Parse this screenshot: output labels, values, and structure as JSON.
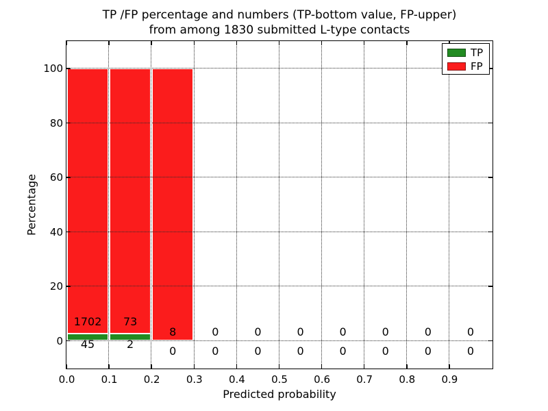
{
  "chart_data": {
    "type": "bar",
    "stacked": true,
    "title_line1": "TP /FP percentage and numbers (TP-bottom value, FP-upper)",
    "title_line2": "from among 1830 submitted L-type contacts",
    "total_contacts": 1830,
    "xlabel": "Predicted probability",
    "ylabel": "Percentage",
    "x_tick_labels": [
      "0.0",
      "0.1",
      "0.2",
      "0.3",
      "0.4",
      "0.5",
      "0.6",
      "0.7",
      "0.8",
      "0.9"
    ],
    "y_tick_values": [
      0,
      20,
      40,
      60,
      80,
      100
    ],
    "xlim": [
      0.0,
      1.0
    ],
    "ylim": [
      -10,
      110
    ],
    "bin_width": 0.1,
    "grid": {
      "style": "dotted",
      "color": "#2b2b2b"
    },
    "annotation_note": "per-bin counts: FP number shown above, TP number shown below",
    "series": [
      {
        "name": "TP",
        "color": "#228b22",
        "values": [
          45,
          2,
          0,
          0,
          0,
          0,
          0,
          0,
          0,
          0
        ]
      },
      {
        "name": "FP",
        "color": "#fb1c1c",
        "values": [
          1702,
          73,
          8,
          0,
          0,
          0,
          0,
          0,
          0,
          0
        ]
      }
    ],
    "legend": {
      "position": "upper right",
      "entries": [
        {
          "label": "TP",
          "color": "#228b22"
        },
        {
          "label": "FP",
          "color": "#fb1c1c"
        }
      ]
    }
  }
}
